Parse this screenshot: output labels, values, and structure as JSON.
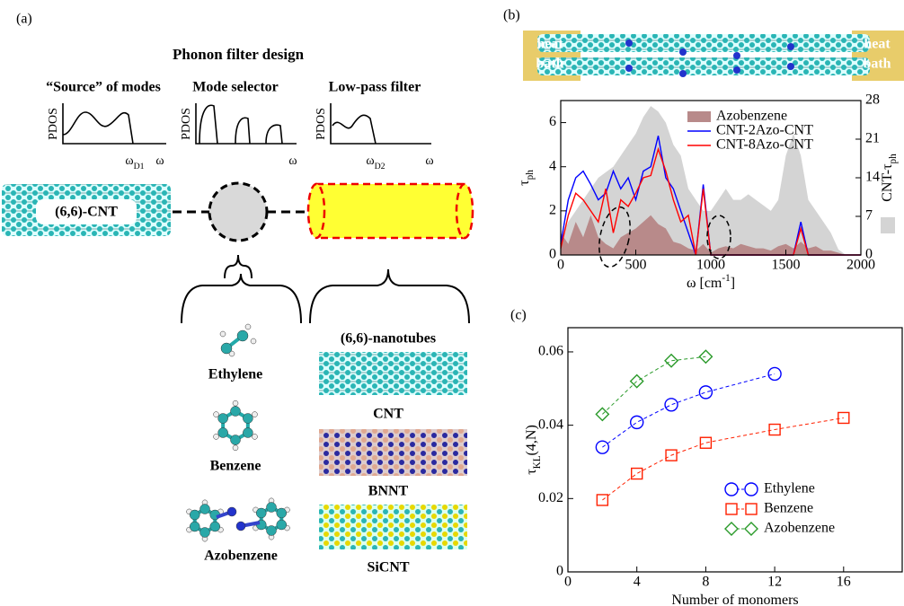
{
  "panel_a": {
    "label": "(a)",
    "title": "Phonon filter design",
    "columns": [
      "“Source” of modes",
      "Mode selector",
      "Low-pass filter"
    ],
    "plots": [
      {
        "ylabel": "PDOS",
        "xlabels": [
          {
            "text": "ω",
            "sub": "D1"
          },
          {
            "text": "ω"
          }
        ]
      },
      {
        "ylabel": "PDOS",
        "xlabels": [
          {
            "text": "ω"
          }
        ]
      },
      {
        "ylabel": "PDOS",
        "xlabels": [
          {
            "text": "ω",
            "sub": "D2"
          },
          {
            "text": "ω"
          }
        ]
      }
    ],
    "source_tube": "(6,6)-CNT",
    "molecules": [
      "Ethylene",
      "Benzene",
      "Azobenzene"
    ],
    "nanotubes_title": "(6,6)-nanotubes",
    "nanotubes": [
      "CNT",
      "BNNT",
      "SiCNT"
    ]
  },
  "panel_b": {
    "label": "(b)",
    "heat_bath_left": [
      "heat",
      "bath"
    ],
    "heat_bath_right": [
      "heat",
      "bath"
    ]
  },
  "panel_c": {
    "label": "(c)"
  },
  "chart_data": [
    {
      "type": "line",
      "legend": "upper right",
      "xlabel": {
        "text": "ω [cm",
        "sup": "-1",
        "tail": "]"
      },
      "ylabel": {
        "text": "τ",
        "sub": "ph"
      },
      "y2label": {
        "text": "CNT-τ",
        "sub": "ph"
      },
      "xlim": [
        0,
        2000
      ],
      "xticks": [
        0,
        500,
        1000,
        1500,
        2000
      ],
      "ylim": [
        0,
        7
      ],
      "yticks": [
        0,
        2,
        4,
        6
      ],
      "y2lim": [
        0,
        28
      ],
      "y2ticks": [
        0,
        7,
        14,
        21,
        28
      ],
      "x": [
        0,
        50,
        100,
        150,
        200,
        250,
        300,
        350,
        400,
        450,
        500,
        550,
        600,
        650,
        700,
        750,
        800,
        850,
        900,
        950,
        1000,
        1050,
        1100,
        1150,
        1200,
        1250,
        1300,
        1350,
        1400,
        1450,
        1500,
        1550,
        1600,
        1650,
        1700,
        1750,
        1800,
        1850,
        1900,
        1950,
        2000
      ],
      "series": [
        {
          "kind": "area",
          "axis": "y2",
          "color": "#d4d4d4",
          "values": [
            3,
            6,
            8,
            10,
            12,
            14,
            15,
            16,
            18,
            20,
            22,
            25,
            27,
            26,
            24,
            20,
            18,
            12,
            10,
            8,
            8,
            10,
            12,
            10,
            10,
            11,
            10,
            9,
            8,
            10,
            18,
            22,
            18,
            10,
            8,
            6,
            4,
            1,
            0,
            0,
            0
          ]
        },
        {
          "name": "Azobenzene",
          "kind": "area",
          "color": "#b88a8a",
          "values": [
            1,
            0.5,
            1.5,
            0.8,
            1.8,
            0.8,
            0.5,
            0.3,
            0.8,
            1,
            1.2,
            1.5,
            1.8,
            1.4,
            1.2,
            0.6,
            0.5,
            0.3,
            0.2,
            0.5,
            0.1,
            0.3,
            0.4,
            0.3,
            0.5,
            0.4,
            0.3,
            0.3,
            0.2,
            0.4,
            0.5,
            0.3,
            0.6,
            0.3,
            0.4,
            0.2,
            0.2,
            0.1,
            0,
            0,
            0
          ]
        },
        {
          "name": "CNT-2Azo-CNT",
          "kind": "line",
          "color": "#0000ff",
          "values": [
            0.5,
            2.5,
            3.5,
            3.8,
            3.2,
            2.5,
            2.8,
            3.8,
            3,
            3.5,
            2.5,
            3.8,
            4,
            5.4,
            3.5,
            3,
            2,
            1,
            0,
            3.2,
            0,
            0,
            0,
            0,
            0,
            0,
            0,
            0,
            0,
            0,
            0,
            0,
            1.5,
            0,
            0,
            0,
            0,
            0,
            0,
            0,
            0
          ]
        },
        {
          "name": "CNT-8Azo-CNT",
          "kind": "line",
          "color": "#ff0000",
          "values": [
            0.3,
            1.8,
            2.8,
            2.5,
            2,
            1.5,
            3,
            1,
            2.5,
            2.2,
            2.8,
            3.5,
            3.6,
            4.8,
            3.8,
            2.5,
            1.5,
            1.8,
            0,
            3,
            0,
            0,
            0,
            0,
            0,
            0,
            0,
            0,
            0,
            0,
            0,
            0,
            1.2,
            0,
            0,
            0,
            0,
            0,
            0,
            0,
            0
          ]
        }
      ]
    },
    {
      "type": "line",
      "legend": "lower right",
      "xlabel": {
        "text": "Number of monomers"
      },
      "ylabel": {
        "text": "τ",
        "sub": "KL",
        "tail": "(4,N)"
      },
      "xlim": [
        0,
        19.4
      ],
      "xticks": [
        0,
        4,
        8,
        12,
        16
      ],
      "ylim": [
        0,
        0.0666
      ],
      "yticks": [
        0,
        0.02,
        0.04,
        0.06
      ],
      "series": [
        {
          "name": "Ethylene",
          "kind": "line",
          "marker": "circle",
          "color": "#0000ff",
          "x": [
            2,
            4,
            6,
            8,
            12
          ],
          "values": [
            0.034,
            0.0408,
            0.0456,
            0.049,
            0.054
          ]
        },
        {
          "name": "Benzene",
          "kind": "line",
          "marker": "square",
          "color": "#ff2000",
          "x": [
            2,
            4,
            6,
            8,
            12,
            16
          ],
          "values": [
            0.0196,
            0.0268,
            0.0318,
            0.0352,
            0.0388,
            0.042
          ]
        },
        {
          "name": "Azobenzene",
          "kind": "line",
          "marker": "diamond",
          "color": "#2a9a2a",
          "x": [
            2,
            4,
            6,
            8
          ],
          "values": [
            0.043,
            0.052,
            0.0576,
            0.0587
          ]
        }
      ]
    }
  ]
}
